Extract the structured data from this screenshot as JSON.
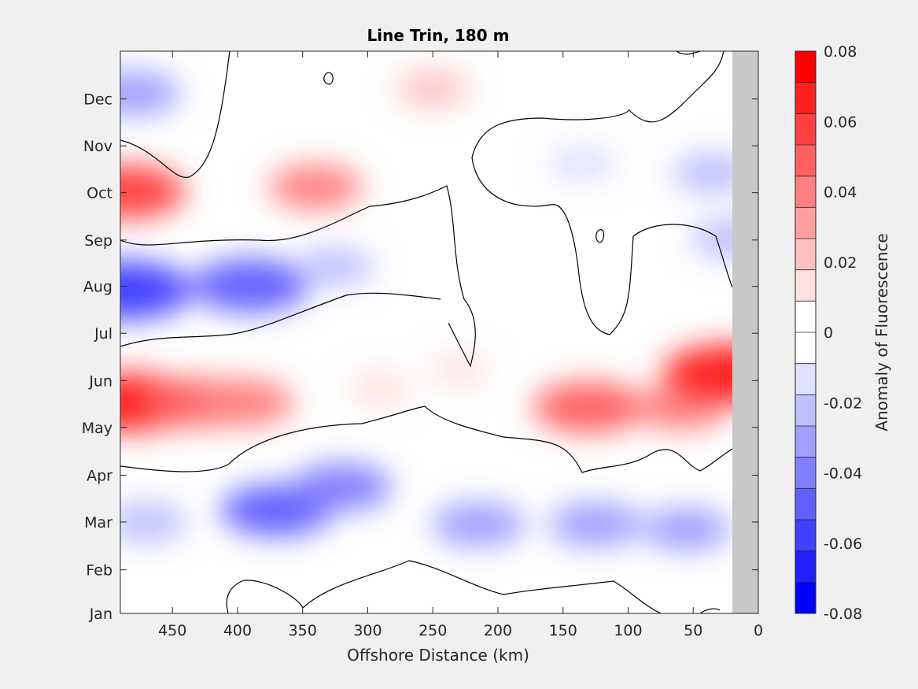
{
  "chart_data": {
    "type": "heatmap",
    "subtype": "filled-contour",
    "title": "Line Trin, 180 m",
    "xlabel": "Offshore Distance (km)",
    "ylabel": "",
    "colorbar_label": "Anomaly of Fluorescence",
    "x_ticks": [
      "450",
      "400",
      "350",
      "300",
      "250",
      "200",
      "150",
      "100",
      "50",
      "0"
    ],
    "x_tick_values": [
      450,
      400,
      350,
      300,
      250,
      200,
      150,
      100,
      50,
      0
    ],
    "xlim": [
      490,
      0
    ],
    "x_direction": "reversed",
    "y_ticks": [
      "Jan",
      "Feb",
      "Mar",
      "Apr",
      "May",
      "Jun",
      "Jul",
      "Aug",
      "Sep",
      "Oct",
      "Nov",
      "Dec"
    ],
    "y_tick_values": [
      0,
      0.93,
      1.95,
      2.95,
      3.97,
      4.97,
      5.98,
      6.98,
      7.97,
      8.98,
      9.98,
      10.98
    ],
    "ylim": [
      0,
      12
    ],
    "colorbar_ticks": [
      "0.08",
      "0.06",
      "0.04",
      "0.02",
      "0",
      "-0.02",
      "-0.04",
      "-0.06",
      "-0.08"
    ],
    "clim": [
      -0.08,
      0.08
    ],
    "levels": [
      -0.08,
      -0.07,
      -0.06,
      -0.05,
      -0.04,
      -0.03,
      -0.02,
      -0.01,
      0,
      0.01,
      0.02,
      0.03,
      0.04,
      0.05,
      0.06,
      0.07,
      0.08
    ],
    "colormap": [
      "#0000ff",
      "#2020ff",
      "#4040ff",
      "#6060ff",
      "#8080ff",
      "#a0a0ff",
      "#c0c0ff",
      "#e0e0ff",
      "#ffffff",
      "#ffffff",
      "#ffe0e0",
      "#ffc0c0",
      "#ffa0a0",
      "#ff8080",
      "#ff6060",
      "#ff4040",
      "#ff2020",
      "#ff0000"
    ],
    "no_data_range_km": [
      20,
      0
    ],
    "no_data_color": "#c8c8c8",
    "features": [
      {
        "x": 480,
        "y": 4.5,
        "value": 0.07
      },
      {
        "x": 430,
        "y": 4.5,
        "value": 0.05
      },
      {
        "x": 395,
        "y": 4.5,
        "value": 0.045
      },
      {
        "x": 290,
        "y": 4.8,
        "value": 0.015
      },
      {
        "x": 230,
        "y": 5.2,
        "value": 0.01
      },
      {
        "x": 130,
        "y": 4.4,
        "value": 0.055
      },
      {
        "x": 60,
        "y": 4.4,
        "value": 0.04
      },
      {
        "x": 22,
        "y": 5.1,
        "value": 0.075
      },
      {
        "x": 485,
        "y": 6.9,
        "value": -0.07
      },
      {
        "x": 390,
        "y": 7.0,
        "value": -0.06
      },
      {
        "x": 325,
        "y": 7.4,
        "value": -0.025
      },
      {
        "x": 485,
        "y": 9.0,
        "value": 0.06
      },
      {
        "x": 340,
        "y": 9.1,
        "value": 0.04
      },
      {
        "x": 250,
        "y": 11.2,
        "value": 0.02
      },
      {
        "x": 480,
        "y": 11.1,
        "value": -0.04
      },
      {
        "x": 370,
        "y": 2.2,
        "value": -0.055
      },
      {
        "x": 320,
        "y": 2.7,
        "value": -0.045
      },
      {
        "x": 215,
        "y": 1.9,
        "value": -0.04
      },
      {
        "x": 125,
        "y": 1.9,
        "value": -0.04
      },
      {
        "x": 55,
        "y": 1.8,
        "value": -0.035
      },
      {
        "x": 470,
        "y": 1.95,
        "value": -0.03
      },
      {
        "x": 135,
        "y": 9.6,
        "value": -0.02
      },
      {
        "x": 35,
        "y": 9.4,
        "value": -0.03
      },
      {
        "x": 20,
        "y": 8.0,
        "value": -0.03
      }
    ]
  }
}
